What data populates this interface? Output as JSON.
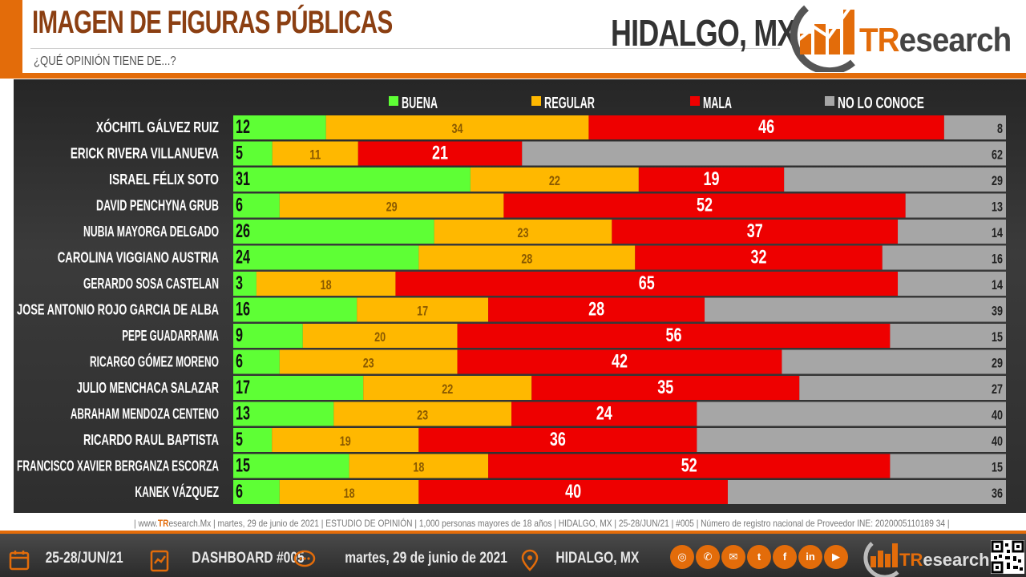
{
  "header": {
    "title": "IMAGEN DE FIGURAS PÚBLICAS",
    "subtitle": "¿QUÉ OPINIÓN TIENE DE...?",
    "region": "HIDALGO, MX",
    "brand_prefix": "TR",
    "brand_rest": "esearch"
  },
  "colors": {
    "accent": "#e36c0a",
    "buena": "#5eff35",
    "regular": "#ffb800",
    "mala": "#ee0000",
    "no_lo_conoce": "#a6a6a6"
  },
  "chart_data": {
    "type": "bar",
    "orientation": "horizontal",
    "stacked": true,
    "legend_position": "top",
    "categories": [
      "XÓCHITL GÁLVEZ RUIZ",
      "ERICK RIVERA VILLANUEVA",
      "ISRAEL FÉLIX SOTO",
      "DAVID PENCHYNA GRUB",
      "NUBIA MAYORGA DELGADO",
      "CAROLINA VIGGIANO AUSTRIA",
      "GERARDO SOSA CASTELAN",
      "JOSE ANTONIO ROJO GARCIA DE ALBA",
      "PEPE GUADARRAMA",
      "RICARGO GÓMEZ MORENO",
      "JULIO MENCHACA SALAZAR",
      "ABRAHAM MENDOZA CENTENO",
      "RICARDO RAUL BAPTISTA",
      "FRANCISCO XAVIER BERGANZA ESCORZA",
      "KANEK VÁZQUEZ"
    ],
    "series": [
      {
        "name": "BUENA",
        "color": "#5eff35",
        "values": [
          12,
          5,
          31,
          6,
          26,
          24,
          3,
          16,
          9,
          6,
          17,
          13,
          5,
          15,
          6
        ]
      },
      {
        "name": "REGULAR",
        "color": "#ffb800",
        "values": [
          34,
          11,
          22,
          29,
          23,
          28,
          18,
          17,
          20,
          23,
          22,
          23,
          19,
          18,
          18
        ]
      },
      {
        "name": "MALA",
        "color": "#ee0000",
        "values": [
          46,
          21,
          19,
          52,
          37,
          32,
          65,
          28,
          56,
          42,
          35,
          24,
          36,
          52,
          40
        ]
      },
      {
        "name": "NO LO CONOCE",
        "color": "#a6a6a6",
        "values": [
          8,
          62,
          29,
          13,
          14,
          16,
          14,
          39,
          15,
          29,
          27,
          40,
          40,
          15,
          36
        ]
      }
    ]
  },
  "source": {
    "prefix": "| www.",
    "brand": "TR",
    "rest": "esearch.Mx | martes, 29 de junio de 2021 | ESTUDIO DE OPINIÓN | 1,000 personas mayores de 18 años | HIDALGO, MX | 25-28/JUN/21 | #005 | Número de registro nacional de Proveedor INE: 2020005110189 34 |"
  },
  "footer": {
    "dates": "25-28/JUN/21",
    "dashboard": "DASHBOARD #005",
    "date": "martes, 29 de junio de 2021",
    "location": "HIDALGO, MX",
    "brand_prefix": "TR",
    "brand_rest": "esearch",
    "social_icons": [
      "globe-icon",
      "phone-icon",
      "mail-icon",
      "twitter-icon",
      "facebook-icon",
      "linkedin-icon",
      "youtube-icon"
    ]
  }
}
